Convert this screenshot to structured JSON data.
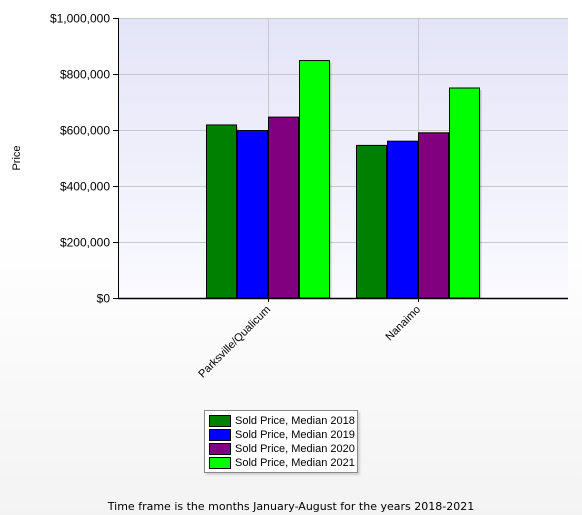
{
  "chart_data": {
    "type": "bar",
    "categories": [
      "Parksville/Qualicum",
      "Nanaimo"
    ],
    "series": [
      {
        "name": "Sold Price, Median 2018",
        "values": [
          618000,
          545000
        ],
        "color": "#008000"
      },
      {
        "name": "Sold Price, Median 2019",
        "values": [
          598000,
          560000
        ],
        "color": "#0000ff"
      },
      {
        "name": "Sold Price, Median 2020",
        "values": [
          646000,
          590000
        ],
        "color": "#800080"
      },
      {
        "name": "Sold Price, Median 2021",
        "values": [
          848000,
          750000
        ],
        "color": "#00ff00"
      }
    ],
    "title": "",
    "xlabel": "",
    "ylabel": "Price",
    "ylim": [
      0,
      1000000
    ],
    "yticks": [
      0,
      200000,
      400000,
      600000,
      800000,
      1000000
    ],
    "ytick_labels": [
      "$0",
      "$200,000",
      "$400,000",
      "$600,000",
      "$800,000",
      "$1,000,000"
    ],
    "grid": true,
    "legend_position": "bottom"
  },
  "caption": "Time frame is the months January-August for the years 2018-2021"
}
